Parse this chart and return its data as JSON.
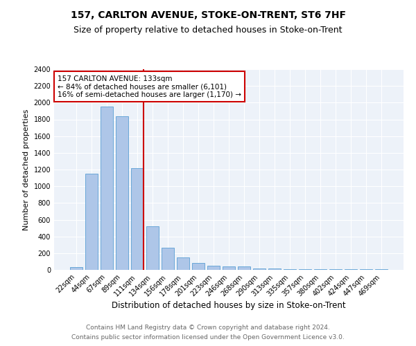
{
  "title": "157, CARLTON AVENUE, STOKE-ON-TRENT, ST6 7HF",
  "subtitle": "Size of property relative to detached houses in Stoke-on-Trent",
  "xlabel": "Distribution of detached houses by size in Stoke-on-Trent",
  "ylabel": "Number of detached properties",
  "categories": [
    "22sqm",
    "44sqm",
    "67sqm",
    "89sqm",
    "111sqm",
    "134sqm",
    "156sqm",
    "178sqm",
    "201sqm",
    "223sqm",
    "246sqm",
    "268sqm",
    "290sqm",
    "313sqm",
    "335sqm",
    "357sqm",
    "380sqm",
    "402sqm",
    "424sqm",
    "447sqm",
    "469sqm"
  ],
  "values": [
    30,
    1150,
    1950,
    1840,
    1220,
    520,
    265,
    145,
    80,
    50,
    45,
    40,
    20,
    15,
    10,
    5,
    5,
    5,
    5,
    5,
    5
  ],
  "bar_color": "#aec6e8",
  "bar_edge_color": "#5a9fd4",
  "vline_color": "#cc0000",
  "annotation_text": "157 CARLTON AVENUE: 133sqm\n← 84% of detached houses are smaller (6,101)\n16% of semi-detached houses are larger (1,170) →",
  "annotation_box_color": "#ffffff",
  "annotation_box_edge": "#cc0000",
  "ylim": [
    0,
    2400
  ],
  "yticks": [
    0,
    200,
    400,
    600,
    800,
    1000,
    1200,
    1400,
    1600,
    1800,
    2000,
    2200,
    2400
  ],
  "footer_line1": "Contains HM Land Registry data © Crown copyright and database right 2024.",
  "footer_line2": "Contains public sector information licensed under the Open Government Licence v3.0.",
  "title_fontsize": 10,
  "subtitle_fontsize": 9,
  "xlabel_fontsize": 8.5,
  "ylabel_fontsize": 8,
  "tick_fontsize": 7,
  "footer_fontsize": 6.5,
  "annotation_fontsize": 7.5
}
